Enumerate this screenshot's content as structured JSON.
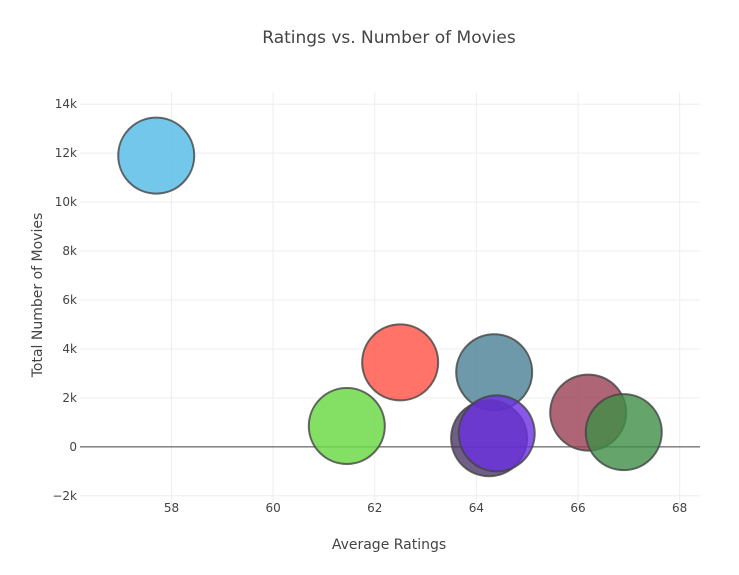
{
  "chart_data": {
    "type": "scatter",
    "title": "Ratings vs. Number of Movies",
    "xlabel": "Average Ratings",
    "ylabel": "Total Number of Movies",
    "xlim": [
      56.2,
      68.4
    ],
    "ylim": [
      -2500,
      14500
    ],
    "x_ticks": [
      58,
      60,
      62,
      64,
      66,
      68
    ],
    "x_tick_labels": [
      "58",
      "60",
      "62",
      "64",
      "66",
      "68"
    ],
    "y_ticks": [
      -2000,
      0,
      2000,
      4000,
      6000,
      8000,
      10000,
      12000,
      14000
    ],
    "y_tick_labels": [
      "−2k",
      "0",
      "2k",
      "4k",
      "6k",
      "8k",
      "10k",
      "12k",
      "14k"
    ],
    "grid": true,
    "zero_line": true,
    "points": [
      {
        "x": 57.7,
        "y": 11900,
        "color": "#5bbde8",
        "opacity": 0.85
      },
      {
        "x": 61.45,
        "y": 850,
        "color": "#6ed94a",
        "opacity": 0.85
      },
      {
        "x": 62.5,
        "y": 3450,
        "color": "#ff5a4e",
        "opacity": 0.85
      },
      {
        "x": 64.35,
        "y": 3050,
        "color": "#4a7f96",
        "opacity": 0.8
      },
      {
        "x": 64.25,
        "y": 350,
        "color": "#3f2a5e",
        "opacity": 0.75
      },
      {
        "x": 64.4,
        "y": 550,
        "color": "#6a2fe0",
        "opacity": 0.8
      },
      {
        "x": 66.2,
        "y": 1400,
        "color": "#9a3f52",
        "opacity": 0.8
      },
      {
        "x": 66.9,
        "y": 600,
        "color": "#3f8f46",
        "opacity": 0.8
      }
    ]
  }
}
